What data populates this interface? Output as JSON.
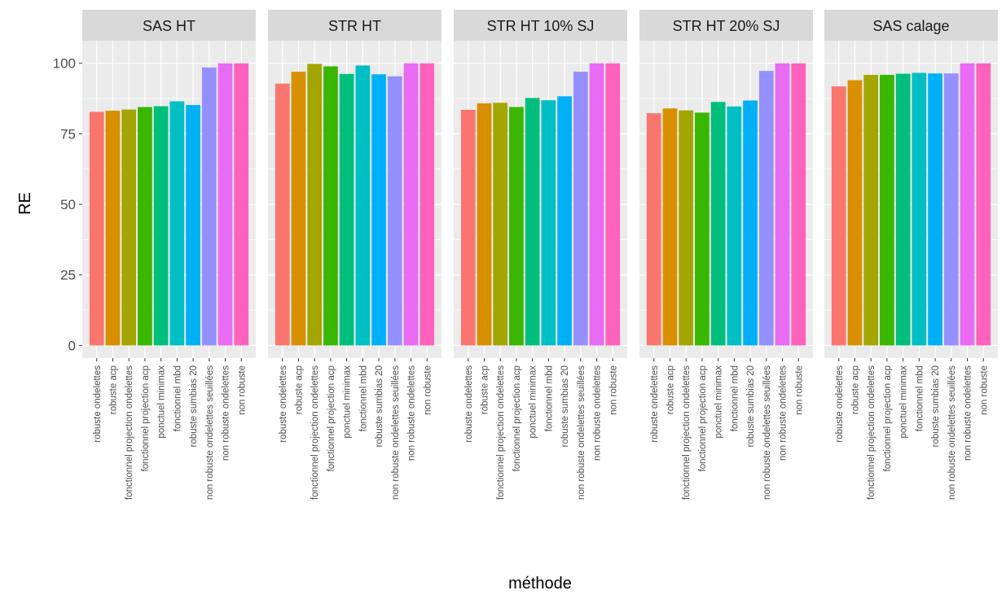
{
  "chart_data": {
    "type": "bar",
    "facet_titles": [
      "SAS HT",
      "STR HT",
      "STR HT 10% SJ",
      "STR HT 20% SJ",
      "SAS calage"
    ],
    "categories": [
      "robuste ondelettes",
      "robuste acp",
      "fonctionnel projection ondelettes",
      "fonctionnel projection acp",
      "ponctuel minimax",
      "fonctionnel mbd",
      "robuste sumbias 20",
      "non robuste ondelettes seuillées",
      "non robuste ondelettes",
      "non robuste"
    ],
    "colors": [
      "#F8766D",
      "#D89000",
      "#A3A500",
      "#39B600",
      "#00BF7D",
      "#00BFC4",
      "#00B0F6",
      "#9590FF",
      "#E76BF3",
      "#FF62BC"
    ],
    "series": [
      {
        "name": "SAS HT",
        "values": [
          82.8,
          83.2,
          83.6,
          84.5,
          84.8,
          86.5,
          85.2,
          98.5,
          100,
          100
        ]
      },
      {
        "name": "STR HT",
        "values": [
          92.8,
          97.0,
          99.8,
          98.9,
          96.2,
          99.2,
          96.1,
          95.4,
          100,
          100
        ]
      },
      {
        "name": "STR HT 10% SJ",
        "values": [
          83.5,
          85.8,
          86.0,
          84.5,
          87.7,
          86.9,
          88.3,
          97.0,
          100,
          100
        ]
      },
      {
        "name": "STR HT 20% SJ",
        "values": [
          82.3,
          84.0,
          83.3,
          82.5,
          86.3,
          84.7,
          86.8,
          97.3,
          100,
          100
        ]
      },
      {
        "name": "SAS calage",
        "values": [
          91.8,
          94.0,
          95.9,
          95.9,
          96.3,
          96.6,
          96.4,
          96.4,
          100,
          100
        ]
      }
    ],
    "xlabel": "méthode",
    "ylabel": "RE",
    "ylim": [
      -4.5,
      108
    ],
    "yticks": [
      0,
      25,
      50,
      75,
      100
    ],
    "grid": true,
    "legend": "none",
    "panel_background": "#EBEBEB",
    "strip_background": "#D9D9D9"
  }
}
